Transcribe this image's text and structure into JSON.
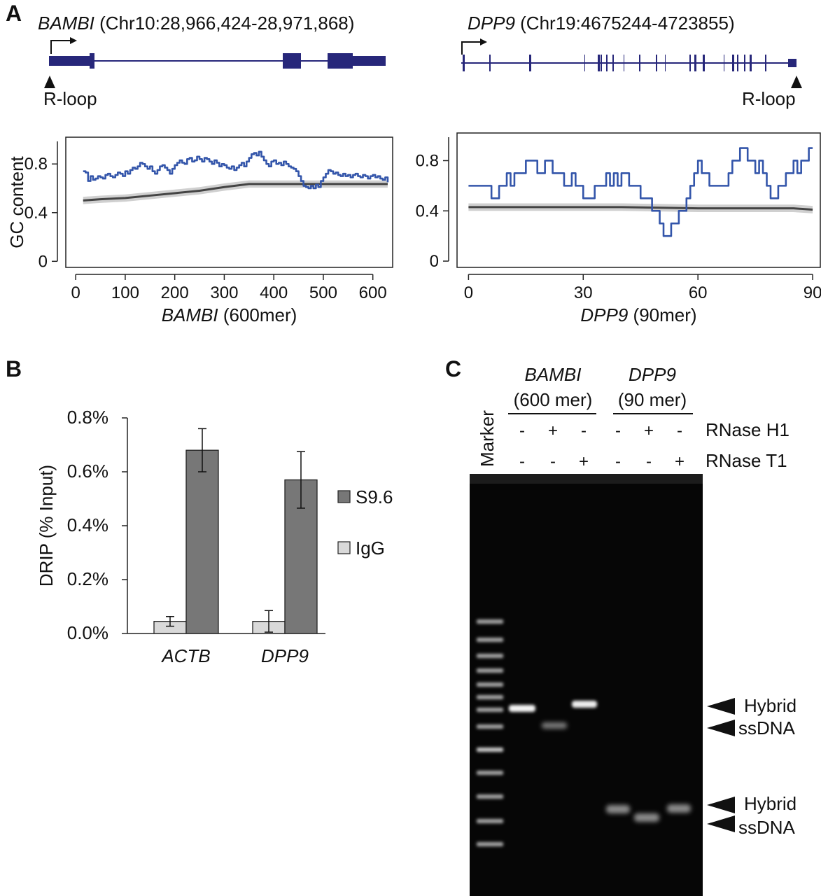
{
  "panels": {
    "A": "A",
    "B": "B",
    "C": "C"
  },
  "panel_a": {
    "bambi_gene": {
      "name": "BAMBI",
      "coords": " (Chr10:28,966,424-28,971,868)",
      "rloop_label": "R-loop"
    },
    "dpp9_gene": {
      "name": "DPP9",
      "coords": " (Chr19:4675244-4723855)",
      "rloop_label": "R-loop"
    },
    "colors": {
      "gene": "#27277a",
      "gc_line": "#3355aa",
      "bg_line": "#444444",
      "bg_band": "#d0d0d0"
    }
  },
  "panel_b": {
    "colors": {
      "S9.6": "#777777",
      "IgG": "#d9d9d9"
    }
  },
  "panel_c": {
    "marker_label": "Marker",
    "groups": [
      {
        "name": "BAMBI",
        "subtitle": "(600 mer)"
      },
      {
        "name": "DPP9",
        "subtitle": "(90 mer)"
      }
    ],
    "treatments": [
      {
        "label": "RNase H1",
        "signs": [
          "-",
          "+",
          "-",
          "-",
          "+",
          "-"
        ]
      },
      {
        "label": "RNase T1",
        "signs": [
          "-",
          "-",
          "+",
          "-",
          "-",
          "+"
        ]
      }
    ],
    "band_labels": [
      {
        "label": "Hybrid"
      },
      {
        "label": "ssDNA"
      },
      {
        "label": "Hybrid"
      },
      {
        "label": "ssDNA"
      }
    ]
  },
  "chart_data": [
    {
      "id": "gc-bambi",
      "type": "line",
      "xlabel_italic": "BAMBI",
      "xlabel_rest": " (600mer)",
      "ylabel": "GC content",
      "xlim": [
        -20,
        640
      ],
      "ylim": [
        -0.05,
        1.02
      ],
      "xticks": [
        0,
        100,
        200,
        300,
        400,
        500,
        600
      ],
      "yticks": [
        0,
        0.4,
        0.8
      ],
      "ytick_labels": [
        "0",
        "0.4",
        "0.8"
      ],
      "series": [
        {
          "role": "gc",
          "x": [
            15,
            20,
            25,
            30,
            35,
            40,
            45,
            50,
            55,
            60,
            65,
            70,
            75,
            80,
            85,
            90,
            95,
            100,
            105,
            110,
            115,
            120,
            125,
            130,
            135,
            140,
            145,
            150,
            155,
            160,
            165,
            170,
            175,
            180,
            185,
            190,
            195,
            200,
            205,
            210,
            215,
            220,
            225,
            230,
            235,
            240,
            245,
            250,
            255,
            260,
            265,
            270,
            275,
            280,
            285,
            290,
            295,
            300,
            305,
            310,
            315,
            320,
            325,
            330,
            335,
            340,
            345,
            350,
            355,
            360,
            365,
            370,
            375,
            380,
            385,
            390,
            395,
            400,
            405,
            410,
            415,
            420,
            425,
            430,
            435,
            440,
            445,
            450,
            455,
            460,
            465,
            470,
            475,
            480,
            485,
            490,
            495,
            500,
            505,
            510,
            515,
            520,
            525,
            530,
            535,
            540,
            545,
            550,
            555,
            560,
            565,
            570,
            575,
            580,
            585,
            590,
            595,
            600,
            605,
            610,
            615,
            620,
            625,
            630
          ],
          "y": [
            0.74,
            0.73,
            0.66,
            0.7,
            0.67,
            0.68,
            0.7,
            0.69,
            0.68,
            0.71,
            0.72,
            0.7,
            0.69,
            0.71,
            0.73,
            0.72,
            0.7,
            0.74,
            0.72,
            0.75,
            0.77,
            0.76,
            0.78,
            0.81,
            0.8,
            0.78,
            0.76,
            0.78,
            0.74,
            0.72,
            0.75,
            0.78,
            0.79,
            0.77,
            0.75,
            0.72,
            0.76,
            0.79,
            0.81,
            0.83,
            0.81,
            0.8,
            0.84,
            0.85,
            0.82,
            0.83,
            0.86,
            0.84,
            0.82,
            0.85,
            0.84,
            0.82,
            0.8,
            0.83,
            0.81,
            0.78,
            0.8,
            0.79,
            0.77,
            0.76,
            0.78,
            0.75,
            0.77,
            0.79,
            0.81,
            0.78,
            0.82,
            0.85,
            0.88,
            0.89,
            0.87,
            0.9,
            0.86,
            0.83,
            0.8,
            0.78,
            0.82,
            0.83,
            0.8,
            0.81,
            0.79,
            0.82,
            0.8,
            0.78,
            0.77,
            0.76,
            0.74,
            0.7,
            0.66,
            0.62,
            0.61,
            0.6,
            0.62,
            0.6,
            0.63,
            0.61,
            0.66,
            0.69,
            0.72,
            0.75,
            0.74,
            0.72,
            0.73,
            0.71,
            0.7,
            0.72,
            0.7,
            0.71,
            0.69,
            0.71,
            0.72,
            0.7,
            0.69,
            0.71,
            0.7,
            0.68,
            0.7,
            0.71,
            0.69,
            0.7,
            0.68,
            0.67,
            0.69,
            0.65
          ]
        },
        {
          "role": "background_mean",
          "x": [
            15,
            50,
            100,
            150,
            200,
            250,
            300,
            350,
            400,
            450,
            500,
            550,
            600,
            630
          ],
          "y": [
            0.5,
            0.51,
            0.52,
            0.54,
            0.56,
            0.58,
            0.61,
            0.635,
            0.635,
            0.635,
            0.635,
            0.635,
            0.635,
            0.635
          ],
          "band": 0.03
        }
      ]
    },
    {
      "id": "gc-dpp9",
      "type": "line",
      "xlabel_italic": "DPP9",
      "xlabel_rest": " (90mer)",
      "xlim": [
        -3,
        92
      ],
      "ylim": [
        -0.05,
        1.02
      ],
      "xticks": [
        0,
        30,
        60,
        90
      ],
      "yticks": [
        0,
        0.4,
        0.8
      ],
      "ytick_labels": [
        "0",
        "0.4",
        "0.8"
      ],
      "series": [
        {
          "role": "gc",
          "x": [
            0,
            1,
            2,
            3,
            4,
            5,
            6,
            7,
            8,
            9,
            10,
            11,
            12,
            13,
            14,
            15,
            16,
            17,
            18,
            19,
            20,
            21,
            22,
            23,
            24,
            25,
            26,
            27,
            28,
            29,
            30,
            31,
            32,
            33,
            34,
            35,
            36,
            37,
            38,
            39,
            40,
            41,
            42,
            43,
            44,
            45,
            46,
            47,
            48,
            49,
            50,
            51,
            52,
            53,
            54,
            55,
            56,
            57,
            58,
            59,
            60,
            61,
            62,
            63,
            64,
            65,
            66,
            67,
            68,
            69,
            70,
            71,
            72,
            73,
            74,
            75,
            76,
            77,
            78,
            79,
            80,
            81,
            82,
            83,
            84,
            85,
            86,
            87,
            88,
            89,
            90
          ],
          "y": [
            0.6,
            0.6,
            0.6,
            0.6,
            0.6,
            0.6,
            0.5,
            0.5,
            0.6,
            0.6,
            0.7,
            0.6,
            0.7,
            0.7,
            0.7,
            0.8,
            0.8,
            0.8,
            0.7,
            0.7,
            0.8,
            0.8,
            0.7,
            0.7,
            0.7,
            0.6,
            0.6,
            0.7,
            0.6,
            0.6,
            0.5,
            0.5,
            0.5,
            0.6,
            0.6,
            0.6,
            0.7,
            0.6,
            0.7,
            0.6,
            0.7,
            0.7,
            0.6,
            0.6,
            0.6,
            0.5,
            0.5,
            0.5,
            0.4,
            0.4,
            0.3,
            0.2,
            0.2,
            0.3,
            0.3,
            0.4,
            0.4,
            0.5,
            0.6,
            0.7,
            0.8,
            0.7,
            0.7,
            0.6,
            0.6,
            0.6,
            0.6,
            0.6,
            0.7,
            0.8,
            0.8,
            0.9,
            0.9,
            0.8,
            0.8,
            0.7,
            0.8,
            0.7,
            0.6,
            0.5,
            0.5,
            0.6,
            0.6,
            0.7,
            0.7,
            0.8,
            0.7,
            0.8,
            0.8,
            0.9,
            0.9
          ]
        },
        {
          "role": "background_mean",
          "x": [
            0,
            10,
            20,
            30,
            40,
            50,
            60,
            70,
            80,
            85,
            90
          ],
          "y": [
            0.43,
            0.43,
            0.43,
            0.43,
            0.43,
            0.425,
            0.42,
            0.42,
            0.42,
            0.42,
            0.41
          ],
          "band": 0.03
        }
      ]
    },
    {
      "id": "drip",
      "type": "bar",
      "ylabel": "DRIP (% Input)",
      "categories": [
        "ACTB",
        "DPP9"
      ],
      "ylim": [
        0,
        0.8
      ],
      "yticks": [
        0,
        0.2,
        0.4,
        0.6,
        0.8
      ],
      "ytick_labels": [
        "0.0%",
        "0.2%",
        "0.4%",
        "0.6%",
        "0.8%"
      ],
      "series": [
        {
          "name": "S9.6",
          "values": [
            0.68,
            0.57
          ],
          "errors": [
            0.08,
            0.105
          ]
        },
        {
          "name": "IgG",
          "values": [
            0.045,
            0.045
          ],
          "errors": [
            0.018,
            0.04
          ]
        }
      ]
    }
  ]
}
